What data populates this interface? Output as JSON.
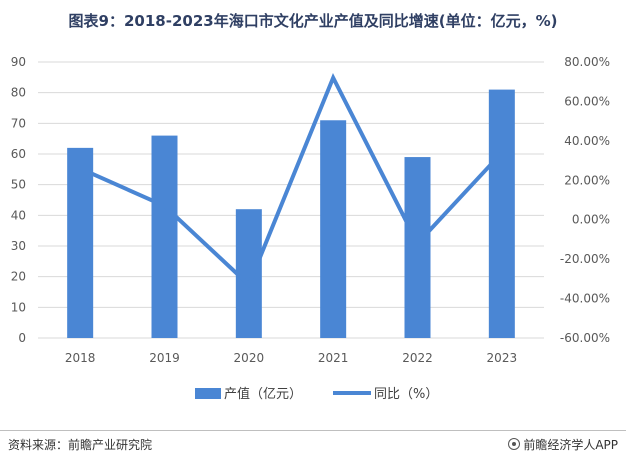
{
  "title": "图表9：2018-2023年海口市文化产业产值及同比增速(单位：亿元，%)",
  "footer": {
    "source": "资料来源：前瞻产业研究院",
    "credit": "前瞻经济学人APP"
  },
  "colors": {
    "bar": "#4a86d4",
    "line": "#4a86d4",
    "grid": "#d9d9d9",
    "axis_text": "#595959"
  },
  "chart_data": {
    "type": "bar",
    "categories": [
      "2018",
      "2019",
      "2020",
      "2021",
      "2022",
      "2023"
    ],
    "series": [
      {
        "name": "产值（亿元）",
        "type": "bar",
        "axis": "left",
        "values": [
          62,
          66,
          42,
          71,
          59,
          81
        ]
      },
      {
        "name": "同比（%）",
        "type": "line",
        "axis": "right",
        "values": [
          26.0,
          7.0,
          -33.0,
          72.0,
          -12.0,
          34.0
        ]
      }
    ],
    "y_left": {
      "min": 0,
      "max": 90,
      "ticks": [
        "0",
        "10",
        "20",
        "30",
        "40",
        "50",
        "60",
        "70",
        "80",
        "90"
      ]
    },
    "y_right": {
      "min": -60,
      "max": 80,
      "ticks": [
        "-60.00%",
        "-40.00%",
        "-20.00%",
        "0.00%",
        "20.00%",
        "40.00%",
        "60.00%",
        "80.00%"
      ]
    },
    "grid": true,
    "legend": "bottom"
  }
}
